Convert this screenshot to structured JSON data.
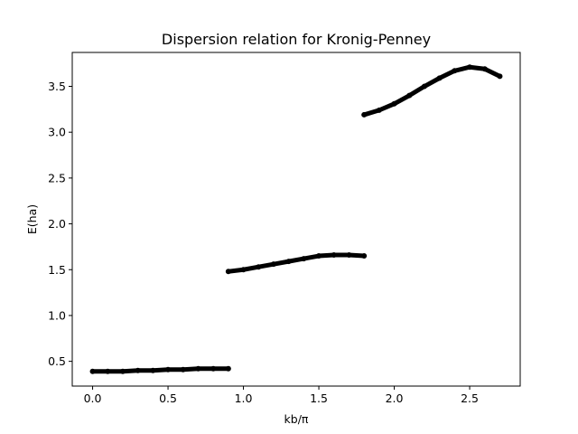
{
  "chart_data": {
    "type": "scatter",
    "title": "Dispersion relation for Kronig-Penney",
    "xlabel": "kb/π",
    "ylabel": "E(ha)",
    "xlim": [
      -0.135,
      2.835
    ],
    "ylim": [
      0.23,
      3.87
    ],
    "xticks": [
      "0.0",
      "0.5",
      "1.0",
      "1.5",
      "2.0",
      "2.5"
    ],
    "yticks": [
      "0.5",
      "1.0",
      "1.5",
      "2.0",
      "2.5",
      "3.0",
      "3.5"
    ],
    "xtick_values": [
      0,
      0.5,
      1.0,
      1.5,
      2.0,
      2.5
    ],
    "ytick_values": [
      0.5,
      1.0,
      1.5,
      2.0,
      2.5,
      3.0,
      3.5
    ],
    "grid": false,
    "marker_color": "#000000",
    "series": [
      {
        "band": 1,
        "x": [
          0.0,
          0.1,
          0.2,
          0.3,
          0.4,
          0.5,
          0.6,
          0.7,
          0.8,
          0.9
        ],
        "y": [
          0.39,
          0.39,
          0.39,
          0.4,
          0.4,
          0.41,
          0.41,
          0.42,
          0.42,
          0.42
        ]
      },
      {
        "band": 2,
        "x": [
          0.9,
          1.0,
          1.1,
          1.2,
          1.3,
          1.4,
          1.5,
          1.6,
          1.7,
          1.8
        ],
        "y": [
          1.48,
          1.5,
          1.53,
          1.56,
          1.59,
          1.62,
          1.65,
          1.66,
          1.66,
          1.65
        ]
      },
      {
        "band": 3,
        "x": [
          1.8,
          1.9,
          2.0,
          2.1,
          2.2,
          2.3,
          2.4,
          2.5,
          2.6,
          2.7
        ],
        "y": [
          3.19,
          3.24,
          3.31,
          3.4,
          3.5,
          3.59,
          3.67,
          3.71,
          3.69,
          3.61
        ]
      }
    ]
  }
}
